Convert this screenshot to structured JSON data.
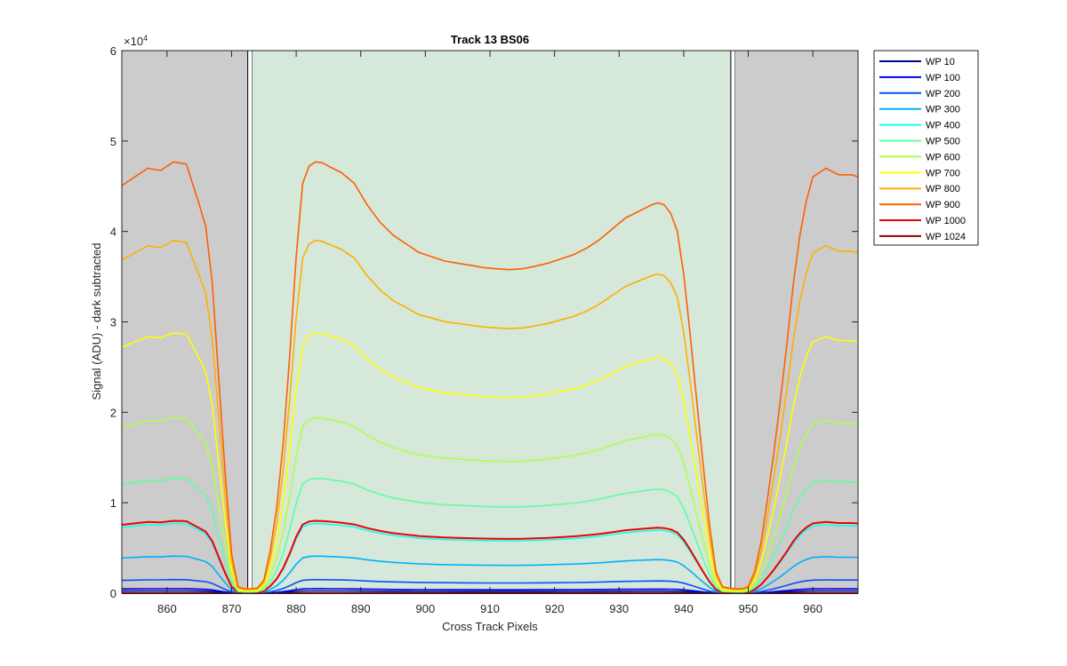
{
  "chart_data": {
    "type": "line",
    "title": "Track 13  BS06",
    "xlabel": "Cross Track Pixels",
    "ylabel": "Signal (ADU) - dark subtracted",
    "y_exponent_label": "×10",
    "y_exponent_power": "4",
    "xlim": [
      853,
      967
    ],
    "ylim": [
      0,
      60000
    ],
    "xticks": [
      860,
      870,
      880,
      890,
      900,
      910,
      920,
      930,
      940,
      950,
      960
    ],
    "yticks": [
      0,
      10000,
      20000,
      30000,
      40000,
      50000,
      60000
    ],
    "ytick_labels": [
      "0",
      "1",
      "2",
      "3",
      "4",
      "5",
      "6"
    ],
    "grid": false,
    "legend_position": "outside-top-right",
    "regions": [
      {
        "kind": "masked",
        "x_start": 853,
        "x_end": 872.5,
        "color": "#cccccc"
      },
      {
        "kind": "boundary",
        "x_start": 872.5,
        "x_end": 873.2,
        "color": "#ffffff"
      },
      {
        "kind": "active",
        "x_start": 873.2,
        "x_end": 947.3,
        "color": "#d5e8d9"
      },
      {
        "kind": "boundary",
        "x_start": 947.3,
        "x_end": 948,
        "color": "#ffffff"
      },
      {
        "kind": "masked",
        "x_start": 948,
        "x_end": 967,
        "color": "#cccccc"
      }
    ],
    "profile": {
      "x": [
        853,
        855,
        857,
        859,
        861,
        863,
        865,
        866,
        867,
        868,
        869,
        870,
        871,
        872,
        873,
        874,
        875,
        876,
        877,
        878,
        879,
        880,
        881,
        882,
        883,
        884,
        885,
        887,
        889,
        891,
        893,
        895,
        897,
        899,
        901,
        903,
        905,
        907,
        909,
        911,
        913,
        915,
        917,
        919,
        921,
        923,
        925,
        927,
        929,
        931,
        933,
        935,
        936,
        937,
        938,
        939,
        940,
        941,
        942,
        943,
        944,
        945,
        946,
        947,
        948,
        949,
        950,
        951,
        952,
        953,
        954,
        955,
        956,
        957,
        958,
        959,
        960,
        962,
        964,
        966,
        967
      ],
      "y": [
        0.945,
        0.965,
        0.985,
        0.98,
        1.0,
        0.995,
        0.9,
        0.85,
        0.72,
        0.5,
        0.28,
        0.09,
        0.015,
        0.01,
        0.01,
        0.012,
        0.03,
        0.1,
        0.2,
        0.35,
        0.55,
        0.78,
        0.95,
        0.99,
        1.0,
        0.998,
        0.99,
        0.975,
        0.95,
        0.9,
        0.86,
        0.83,
        0.81,
        0.79,
        0.78,
        0.77,
        0.765,
        0.76,
        0.755,
        0.752,
        0.75,
        0.752,
        0.758,
        0.765,
        0.775,
        0.785,
        0.8,
        0.82,
        0.845,
        0.87,
        0.885,
        0.9,
        0.905,
        0.9,
        0.88,
        0.84,
        0.74,
        0.6,
        0.45,
        0.3,
        0.16,
        0.05,
        0.015,
        0.012,
        0.01,
        0.01,
        0.015,
        0.05,
        0.12,
        0.22,
        0.33,
        0.45,
        0.58,
        0.72,
        0.83,
        0.91,
        0.965,
        0.985,
        0.97,
        0.97,
        0.965
      ]
    },
    "series": [
      {
        "name": "WP 10",
        "color": "#00008f",
        "peak": 250
      },
      {
        "name": "WP 100",
        "color": "#0000ef",
        "peak": 500
      },
      {
        "name": "WP 200",
        "color": "#0050ff",
        "peak": 1500
      },
      {
        "name": "WP 300",
        "color": "#00afff",
        "peak": 4100
      },
      {
        "name": "WP 400",
        "color": "#10ffef",
        "peak": 7700
      },
      {
        "name": "WP 500",
        "color": "#5fff9f",
        "peak": 12700
      },
      {
        "name": "WP 600",
        "color": "#afff50",
        "peak": 19400
      },
      {
        "name": "WP 700",
        "color": "#ffff00",
        "peak": 28800
      },
      {
        "name": "WP 800",
        "color": "#ffaf00",
        "peak": 39000
      },
      {
        "name": "WP 900",
        "color": "#ff5f00",
        "peak": 47700
      },
      {
        "name": "WP 1000",
        "color": "#ef0000",
        "peak": 8000
      },
      {
        "name": "WP 1024",
        "color": "#8f0000",
        "peak": 0
      }
    ]
  }
}
